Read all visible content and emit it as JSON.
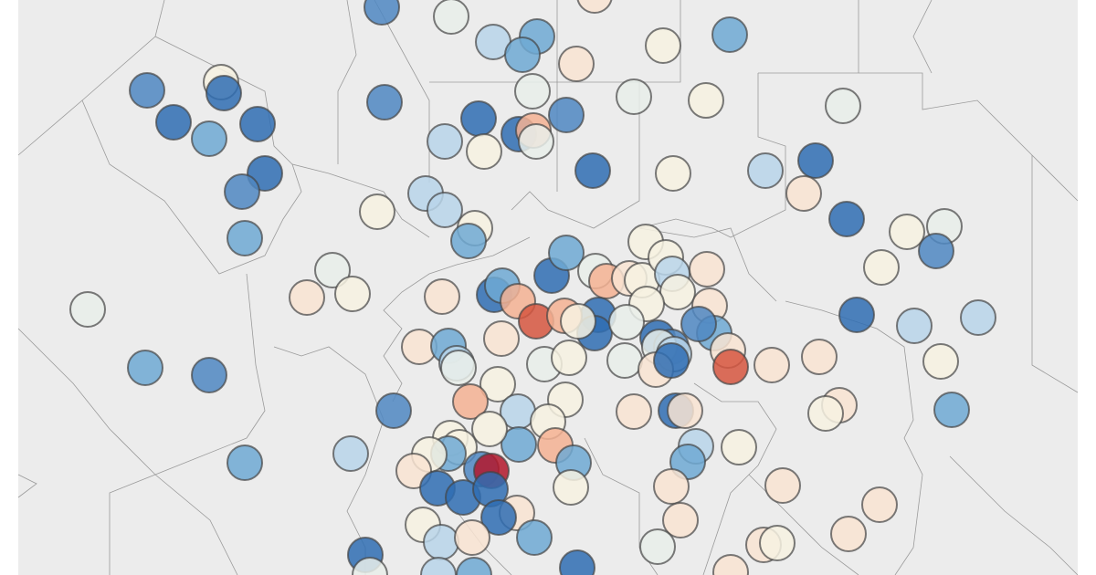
{
  "map": {
    "background_color": "#ececec",
    "border_color": "#9a9a9a",
    "marker_stroke": "#444444",
    "color_scale": {
      "-4": "#2f6db3",
      "-3": "#4f87c2",
      "-2": "#6ea9d3",
      "-1": "#b9d5ea",
      "0": "#e9efea",
      "0.5": "#f7f2e2",
      "1": "#f9e4d2",
      "2": "#f5b193",
      "3": "#d65640",
      "4": "#b3172b"
    },
    "marker_levels": [
      -3,
      0,
      -1,
      -2,
      -2,
      1,
      1,
      0.5,
      -2,
      -3,
      0.5,
      -4,
      -4,
      -2,
      -4,
      -4,
      -3,
      -2,
      -3,
      0,
      -4,
      -4,
      2,
      0,
      -3,
      -1,
      0.5,
      0,
      0.5,
      -4,
      0.5,
      -1,
      -4,
      0,
      1,
      -4,
      0.5,
      0,
      -3,
      0.5,
      -1,
      -1,
      0.5,
      0.5,
      -2,
      0,
      1,
      0.5,
      0,
      1,
      -4,
      -2,
      2,
      3,
      -4,
      -2,
      0,
      2,
      1,
      0.5,
      0.5,
      0.5,
      -1,
      0.5,
      1,
      1,
      0.5,
      -4,
      -4,
      2,
      0.5,
      0,
      -4,
      -3,
      0,
      -1,
      -2,
      1,
      3,
      -3,
      1,
      0,
      0.5,
      0,
      1,
      -4,
      1,
      1,
      -4,
      -1,
      -1,
      0.5,
      -2,
      1,
      0.5,
      -4,
      1,
      1,
      1,
      -2,
      -1,
      0,
      -2,
      -3,
      -3,
      0.5,
      2,
      -1,
      0.5,
      0.5,
      2,
      -2,
      0.5,
      0.5,
      0.5,
      -2,
      0.5,
      1,
      -3,
      4,
      -4,
      -4,
      -4,
      -2,
      0.5,
      1,
      -4,
      0.5,
      -1,
      1,
      -2,
      -1,
      -2,
      0.5,
      1,
      1,
      1,
      0,
      1,
      0.5,
      1,
      1,
      -2,
      -1,
      -4,
      0,
      -1,
      -2,
      -4,
      1
    ]
  }
}
